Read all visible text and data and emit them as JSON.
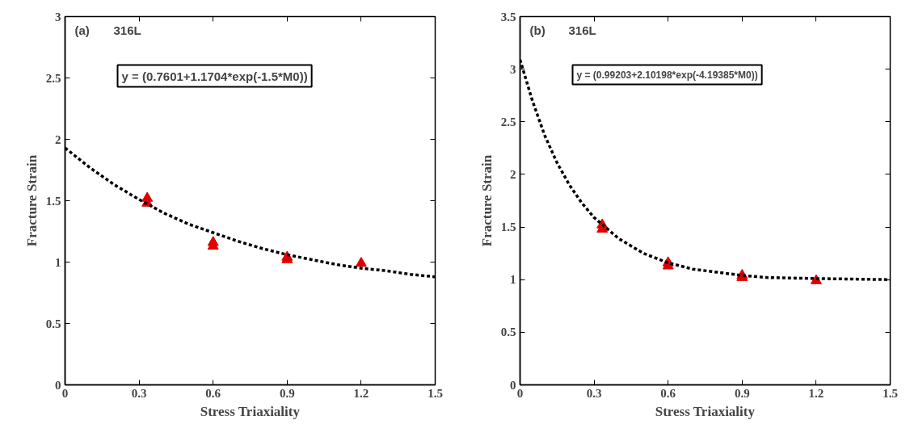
{
  "chart_data": [
    {
      "type": "scatter",
      "xlabel": "Stress Triaxiality",
      "ylabel": "Fracture Strain",
      "annotations": [
        "(a)",
        "316L",
        "y = (0.7601+1.1704*exp(-1.5*M0))"
      ],
      "xlim": [
        0,
        1.5
      ],
      "ylim": [
        0,
        3
      ],
      "xticks": [
        0,
        0.3,
        0.6,
        0.9,
        1.2,
        1.5
      ],
      "yticks": [
        0,
        0.5,
        1,
        1.5,
        2,
        2.5,
        3
      ],
      "grid": false,
      "series": [
        {
          "marker": "triangle",
          "color": "#e00000",
          "x": [
            0.333,
            0.333,
            0.6,
            0.6,
            0.9,
            0.9,
            1.2
          ],
          "values": [
            1.48,
            1.52,
            1.13,
            1.16,
            1.02,
            1.04,
            0.99
          ]
        },
        {
          "type": "line",
          "line_style": "dashed",
          "color": "#000000",
          "x": [
            0,
            0.1,
            0.2,
            0.3,
            0.4,
            0.5,
            0.6,
            0.7,
            0.8,
            0.9,
            1.0,
            1.1,
            1.2,
            1.3,
            1.4,
            1.5
          ],
          "values": [
            1.93,
            1.77,
            1.63,
            1.51,
            1.4,
            1.31,
            1.24,
            1.17,
            1.11,
            1.06,
            1.02,
            0.98,
            0.95,
            0.93,
            0.9,
            0.88
          ]
        }
      ]
    },
    {
      "type": "scatter",
      "xlabel": "Stress Triaxiality",
      "ylabel": "Fracture Strain",
      "annotations": [
        "(b)",
        "316L",
        "y = (0.99203+2.10198*exp(-4.19385*M0))"
      ],
      "xlim": [
        0,
        1.5
      ],
      "ylim": [
        0,
        3.5
      ],
      "xticks": [
        0,
        0.3,
        0.6,
        0.9,
        1.2,
        1.5
      ],
      "yticks": [
        0,
        0.5,
        1,
        1.5,
        2,
        2.5,
        3,
        3.5
      ],
      "grid": false,
      "series": [
        {
          "marker": "triangle",
          "color": "#e00000",
          "x": [
            0.333,
            0.333,
            0.6,
            0.6,
            0.9,
            0.9,
            1.2
          ],
          "values": [
            1.48,
            1.52,
            1.13,
            1.16,
            1.02,
            1.04,
            0.99
          ]
        },
        {
          "type": "line",
          "line_style": "dashed",
          "color": "#000000",
          "x": [
            0,
            0.05,
            0.1,
            0.15,
            0.2,
            0.25,
            0.3,
            0.4,
            0.5,
            0.6,
            0.7,
            0.8,
            0.9,
            1.0,
            1.2,
            1.5
          ],
          "values": [
            3.09,
            2.7,
            2.37,
            2.11,
            1.9,
            1.73,
            1.59,
            1.39,
            1.25,
            1.16,
            1.1,
            1.07,
            1.04,
            1.02,
            1.01,
            1.0
          ]
        }
      ]
    }
  ]
}
